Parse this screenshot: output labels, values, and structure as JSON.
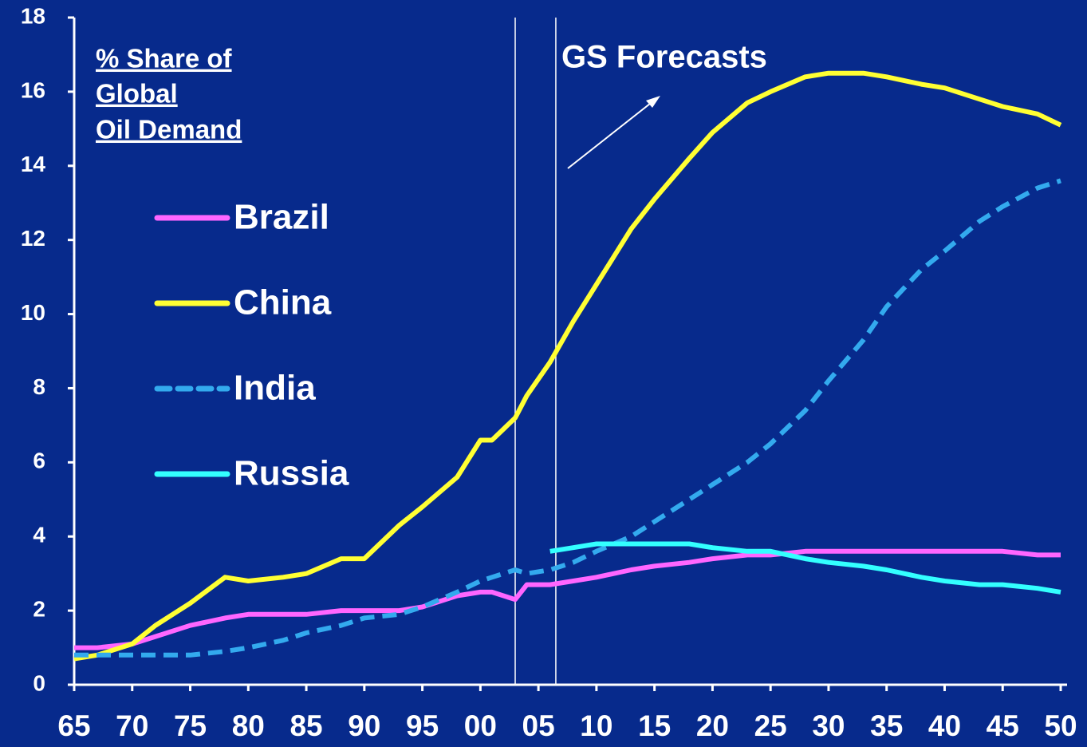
{
  "chart_data": {
    "type": "line",
    "annotations": [
      "% Share of",
      "Global",
      "Oil  Demand",
      "GS Forecasts"
    ],
    "x": [
      1965,
      1967,
      1970,
      1972,
      1975,
      1978,
      1980,
      1983,
      1985,
      1988,
      1990,
      1993,
      1995,
      1998,
      2000,
      2001,
      2003,
      2004,
      2006,
      2008,
      2010,
      2013,
      2015,
      2018,
      2020,
      2023,
      2025,
      2028,
      2030,
      2033,
      2035,
      2038,
      2040,
      2043,
      2045,
      2048,
      2050
    ],
    "series": [
      {
        "name": "Brazil",
        "color": "#ff66ff",
        "dashed": false,
        "values": [
          1.0,
          1.0,
          1.1,
          1.3,
          1.6,
          1.8,
          1.9,
          1.9,
          1.9,
          2.0,
          2.0,
          2.0,
          2.1,
          2.4,
          2.5,
          2.5,
          2.3,
          2.7,
          2.7,
          2.8,
          2.9,
          3.1,
          3.2,
          3.3,
          3.4,
          3.5,
          3.5,
          3.6,
          3.6,
          3.6,
          3.6,
          3.6,
          3.6,
          3.6,
          3.6,
          3.5,
          3.5
        ]
      },
      {
        "name": "China",
        "color": "#ffff33",
        "dashed": false,
        "values": [
          0.7,
          0.8,
          1.1,
          1.6,
          2.2,
          2.9,
          2.8,
          2.9,
          3.0,
          3.4,
          3.4,
          4.3,
          4.8,
          5.6,
          6.6,
          6.6,
          7.2,
          7.8,
          8.7,
          9.8,
          10.8,
          12.3,
          13.1,
          14.2,
          14.9,
          15.7,
          16.0,
          16.4,
          16.5,
          16.5,
          16.4,
          16.2,
          16.1,
          15.8,
          15.6,
          15.4,
          15.1
        ]
      },
      {
        "name": "India",
        "color": "#33aaee",
        "dashed": true,
        "values": [
          0.8,
          0.8,
          0.8,
          0.8,
          0.8,
          0.9,
          1.0,
          1.2,
          1.4,
          1.6,
          1.8,
          1.9,
          2.1,
          2.5,
          2.8,
          2.9,
          3.1,
          3.0,
          3.1,
          3.3,
          3.6,
          4.0,
          4.4,
          5.0,
          5.4,
          6.0,
          6.5,
          7.4,
          8.2,
          9.3,
          10.2,
          11.2,
          11.7,
          12.5,
          12.9,
          13.4,
          13.6
        ]
      },
      {
        "name": "Russia",
        "color": "#33ffff",
        "dashed": false,
        "values": [
          null,
          null,
          null,
          null,
          null,
          null,
          null,
          null,
          null,
          null,
          null,
          null,
          null,
          null,
          null,
          null,
          null,
          null,
          3.6,
          3.7,
          3.8,
          3.8,
          3.8,
          3.8,
          3.7,
          3.6,
          3.6,
          3.4,
          3.3,
          3.2,
          3.1,
          2.9,
          2.8,
          2.7,
          2.7,
          2.6,
          2.5
        ]
      }
    ],
    "reference_lines_x": [
      2003,
      2006.5
    ],
    "xlim": [
      1965,
      2050
    ],
    "xticks": [
      {
        "value": 1965,
        "label": "65"
      },
      {
        "value": 1970,
        "label": "70"
      },
      {
        "value": 1975,
        "label": "75"
      },
      {
        "value": 1980,
        "label": "80"
      },
      {
        "value": 1985,
        "label": "85"
      },
      {
        "value": 1990,
        "label": "90"
      },
      {
        "value": 1995,
        "label": "95"
      },
      {
        "value": 2000,
        "label": "00"
      },
      {
        "value": 2005,
        "label": "05"
      },
      {
        "value": 2010,
        "label": "10"
      },
      {
        "value": 2015,
        "label": "15"
      },
      {
        "value": 2020,
        "label": "20"
      },
      {
        "value": 2025,
        "label": "25"
      },
      {
        "value": 2030,
        "label": "30"
      },
      {
        "value": 2035,
        "label": "35"
      },
      {
        "value": 2040,
        "label": "40"
      },
      {
        "value": 2045,
        "label": "45"
      },
      {
        "value": 2050,
        "label": "50"
      }
    ],
    "ylim": [
      0,
      18
    ],
    "yticks": [
      0,
      2,
      4,
      6,
      8,
      10,
      12,
      14,
      16,
      18
    ],
    "background": "#072a8c"
  }
}
